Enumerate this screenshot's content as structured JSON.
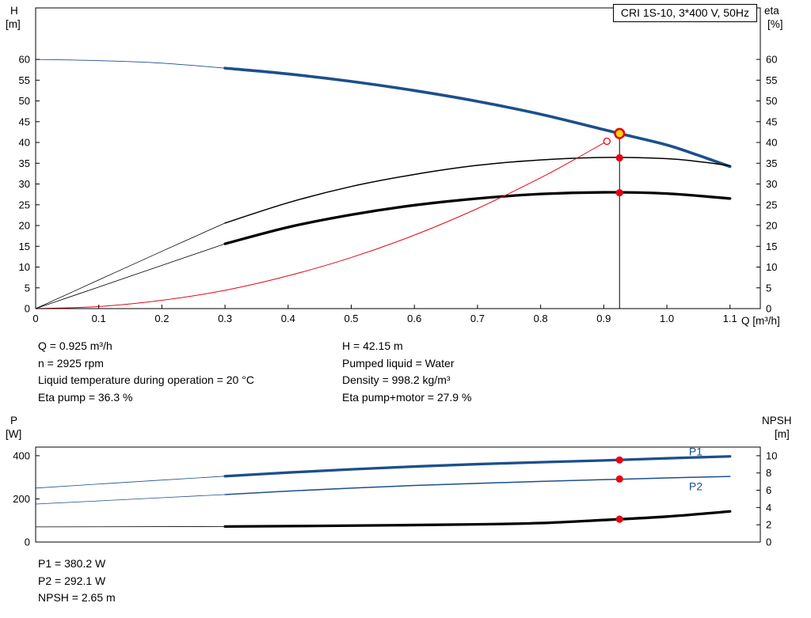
{
  "title_box": "CRI 1S-10, 3*400 V, 50Hz",
  "colors": {
    "blue": "#1c4f8c",
    "red": "#e30613",
    "black": "#000000",
    "yellow": "#ffd800",
    "white": "#ffffff"
  },
  "info": {
    "mid_left": [
      "Q = 0.925 m³/h",
      "n = 2925 rpm",
      "Liquid temperature during operation = 20 °C",
      "Eta pump = 36.3 %"
    ],
    "mid_right": [
      "H = 42.15 m",
      "Pumped liquid = Water",
      "Density = 998.2 kg/m³",
      "Eta pump+motor = 27.9 %"
    ],
    "bottom": [
      "P1 = 380.2 W",
      "P2 = 292.1 W",
      "NPSH = 2.65 m"
    ]
  },
  "chart_data": [
    {
      "id": "hq",
      "type": "line",
      "title": "CRI 1S-10, 3*400 V, 50Hz",
      "x": {
        "label": "Q [m³/h]",
        "min": 0,
        "max": 1.148,
        "ticks": [
          "0",
          "0.1",
          "0.2",
          "0.3",
          "0.4",
          "0.5",
          "0.6",
          "0.7",
          "0.8",
          "0.9",
          "1.0",
          "1.1"
        ],
        "show_tick_labels": true
      },
      "y_left": {
        "label": "H",
        "unit": "[m]",
        "min": 0,
        "max": 72.4,
        "ticks": [
          "0",
          "5",
          "10",
          "15",
          "20",
          "25",
          "30",
          "35",
          "40",
          "45",
          "50",
          "55",
          "60"
        ]
      },
      "y_right": {
        "label": "eta",
        "unit": "[%]",
        "min": 0,
        "max": 72.4,
        "ticks": [
          "0",
          "5",
          "10",
          "15",
          "20",
          "25",
          "30",
          "35",
          "40",
          "45",
          "50",
          "55",
          "60"
        ]
      },
      "grid": false,
      "series": [
        {
          "name": "H curve low-flow thin",
          "axis": "left",
          "color": "blue",
          "width": 0.9,
          "points": [
            [
              0,
              60
            ],
            [
              0.1,
              59.7
            ],
            [
              0.2,
              59.1
            ],
            [
              0.3,
              57.9
            ]
          ]
        },
        {
          "name": "H curve",
          "axis": "left",
          "color": "blue",
          "width": 3.6,
          "points": [
            [
              0.3,
              57.9
            ],
            [
              0.4,
              56.5
            ],
            [
              0.5,
              54.7
            ],
            [
              0.6,
              52.5
            ],
            [
              0.7,
              49.9
            ],
            [
              0.8,
              46.8
            ],
            [
              0.9,
              43.1
            ],
            [
              0.925,
              42.15
            ],
            [
              1.0,
              39.4
            ],
            [
              1.05,
              36.9
            ],
            [
              1.1,
              34.2
            ]
          ]
        },
        {
          "name": "Eta pump low-flow thin",
          "axis": "right",
          "color": "black",
          "width": 0.8,
          "points": [
            [
              0,
              0
            ],
            [
              0.1,
              6.9
            ],
            [
              0.2,
              13.8
            ],
            [
              0.3,
              20.6
            ]
          ]
        },
        {
          "name": "Eta pump",
          "axis": "right",
          "color": "black",
          "width": 1.5,
          "points": [
            [
              0.3,
              20.6
            ],
            [
              0.4,
              25.5
            ],
            [
              0.5,
              29.4
            ],
            [
              0.6,
              32.3
            ],
            [
              0.7,
              34.5
            ],
            [
              0.8,
              35.8
            ],
            [
              0.9,
              36.4
            ],
            [
              1.0,
              36.1
            ],
            [
              1.05,
              35.4
            ],
            [
              1.1,
              34.4
            ]
          ]
        },
        {
          "name": "Eta pump+motor low-flow thin",
          "axis": "right",
          "color": "black",
          "width": 0.8,
          "points": [
            [
              0,
              0
            ],
            [
              0.1,
              5.2
            ],
            [
              0.2,
              10.4
            ],
            [
              0.3,
              15.6
            ]
          ]
        },
        {
          "name": "Eta pump+motor",
          "axis": "right",
          "color": "black",
          "width": 3.3,
          "points": [
            [
              0.3,
              15.6
            ],
            [
              0.4,
              19.6
            ],
            [
              0.5,
              22.6
            ],
            [
              0.6,
              24.9
            ],
            [
              0.7,
              26.5
            ],
            [
              0.8,
              27.6
            ],
            [
              0.9,
              28.0
            ],
            [
              1.0,
              27.7
            ],
            [
              1.1,
              26.5
            ]
          ]
        },
        {
          "name": "System curve",
          "axis": "left",
          "color": "red",
          "width": 1,
          "points": [
            [
              0,
              0
            ],
            [
              0.1,
              0.5
            ],
            [
              0.2,
              2.0
            ],
            [
              0.3,
              4.4
            ],
            [
              0.4,
              7.9
            ],
            [
              0.5,
              12.3
            ],
            [
              0.6,
              17.7
            ],
            [
              0.7,
              24.1
            ],
            [
              0.8,
              31.5
            ],
            [
              0.85,
              35.6
            ],
            [
              0.905,
              40.3
            ]
          ]
        }
      ],
      "duty_line": {
        "q": 0.925,
        "to": 42.15
      },
      "markers": [
        {
          "name": "duty-point",
          "q": 0.925,
          "v": 42.15,
          "axis": "left",
          "style": "duty"
        },
        {
          "name": "eta-pump-point",
          "q": 0.925,
          "v": 36.3,
          "axis": "right",
          "style": "dot"
        },
        {
          "name": "eta-pump-motor-point",
          "q": 0.925,
          "v": 27.9,
          "axis": "right",
          "style": "dot"
        },
        {
          "name": "system-curve-end",
          "q": 0.905,
          "v": 40.3,
          "axis": "left",
          "style": "open"
        }
      ],
      "annotations": []
    },
    {
      "id": "power",
      "type": "line",
      "title": "",
      "x": {
        "label": "",
        "min": 0,
        "max": 1.148,
        "ticks": [],
        "show_tick_labels": false
      },
      "y_left": {
        "label": "P",
        "unit": "[W]",
        "min": 0,
        "max": 440,
        "ticks": [
          "0",
          "200",
          "400"
        ]
      },
      "y_right": {
        "label": "NPSH",
        "unit": "[m]",
        "min": 0,
        "max": 11,
        "ticks": [
          "0",
          "2",
          "4",
          "6",
          "8",
          "10"
        ]
      },
      "grid": false,
      "series": [
        {
          "name": "P1 low-flow thin",
          "axis": "left",
          "color": "blue",
          "width": 0.8,
          "points": [
            [
              0,
              250
            ],
            [
              0.15,
              278
            ],
            [
              0.3,
              305
            ]
          ]
        },
        {
          "name": "P1",
          "axis": "left",
          "color": "blue",
          "width": 3.3,
          "points": [
            [
              0.3,
              305
            ],
            [
              0.4,
              322
            ],
            [
              0.5,
              337
            ],
            [
              0.6,
              350
            ],
            [
              0.7,
              361
            ],
            [
              0.8,
              370
            ],
            [
              0.9,
              378
            ],
            [
              1.0,
              388
            ],
            [
              1.1,
              397
            ]
          ]
        },
        {
          "name": "P2 low-flow thin",
          "axis": "left",
          "color": "blue",
          "width": 0.8,
          "points": [
            [
              0,
              176
            ],
            [
              0.15,
              198
            ],
            [
              0.3,
              220
            ]
          ]
        },
        {
          "name": "P2",
          "axis": "left",
          "color": "blue",
          "width": 1.5,
          "points": [
            [
              0.3,
              220
            ],
            [
              0.4,
              236
            ],
            [
              0.5,
              250
            ],
            [
              0.6,
              262
            ],
            [
              0.7,
              272
            ],
            [
              0.8,
              281
            ],
            [
              0.9,
              289
            ],
            [
              1.0,
              297
            ],
            [
              1.1,
              304
            ]
          ]
        },
        {
          "name": "NPSH low-flow thin",
          "axis": "right",
          "color": "black",
          "width": 0.8,
          "points": [
            [
              0,
              1.75
            ],
            [
              0.3,
              1.8
            ]
          ]
        },
        {
          "name": "NPSH",
          "axis": "right",
          "color": "black",
          "width": 3.3,
          "points": [
            [
              0.3,
              1.8
            ],
            [
              0.5,
              1.9
            ],
            [
              0.7,
              2.05
            ],
            [
              0.8,
              2.2
            ],
            [
              0.9,
              2.55
            ],
            [
              1.0,
              2.95
            ],
            [
              1.1,
              3.55
            ]
          ]
        }
      ],
      "markers": [
        {
          "name": "p1-point",
          "q": 0.925,
          "v": 380.2,
          "axis": "left",
          "style": "dot"
        },
        {
          "name": "p2-point",
          "q": 0.925,
          "v": 292.1,
          "axis": "left",
          "style": "dot"
        },
        {
          "name": "npsh-point",
          "q": 0.925,
          "v": 2.65,
          "axis": "right",
          "style": "dot"
        }
      ],
      "annotations": [
        {
          "text": "P1",
          "q": 1.035,
          "v": 420,
          "axis": "left",
          "color": "blue",
          "size": 14
        },
        {
          "text": "P2",
          "q": 1.035,
          "v": 258,
          "axis": "left",
          "color": "blue",
          "size": 14
        }
      ]
    }
  ]
}
